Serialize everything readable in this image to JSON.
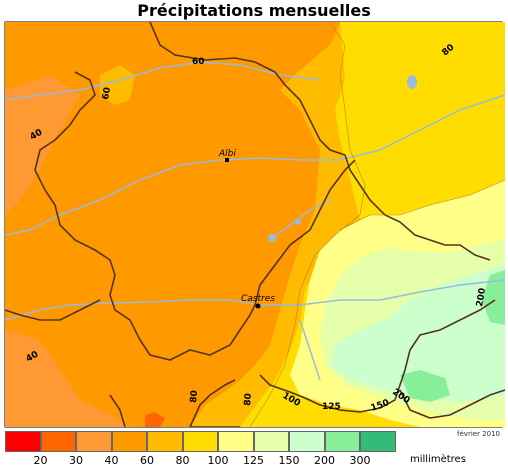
{
  "title": "Précipitations mensuelles",
  "date_note": "février 2010",
  "cities": [
    {
      "name": "Albi"
    },
    {
      "name": "Castres"
    }
  ],
  "isolines": [
    "60",
    "60",
    "40",
    "40",
    "80",
    "80",
    "80",
    "100",
    "125",
    "150",
    "200",
    "200"
  ],
  "legend": {
    "unit": "millimètres",
    "colors": [
      "#ff0000",
      "#ff6600",
      "#ff9933",
      "#ff9900",
      "#ffbb00",
      "#ffdd00",
      "#ffff88",
      "#e6ffaa",
      "#ccffcc",
      "#88ee99",
      "#33bb77"
    ],
    "ticks": [
      "20",
      "30",
      "40",
      "60",
      "80",
      "100",
      "125",
      "150",
      "200",
      "300"
    ]
  }
}
